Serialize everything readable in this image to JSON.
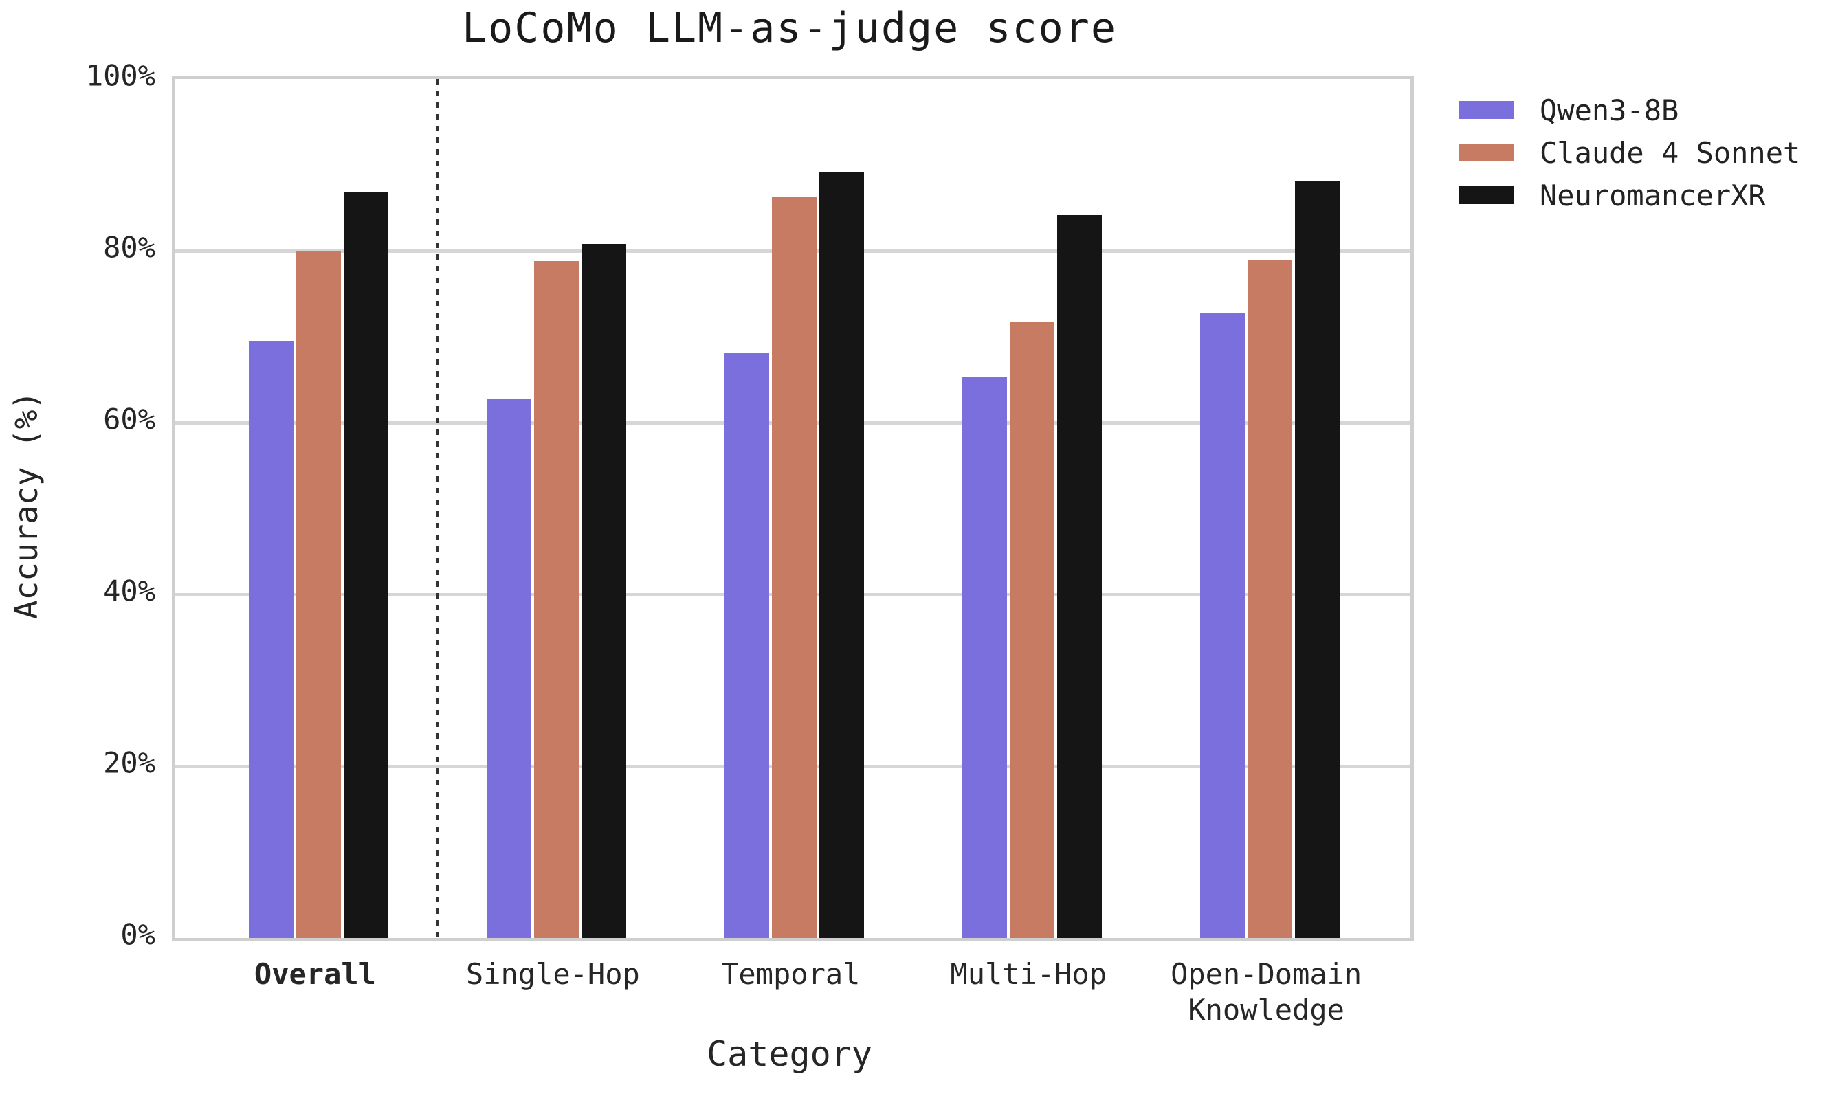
{
  "chart": {
    "title": "LoCoMo LLM-as-judge score",
    "xlabel": "Category",
    "ylabel": "Accuracy (%)"
  },
  "chart_data": {
    "type": "bar",
    "title": "LoCoMo LLM-as-judge score",
    "xlabel": "Category",
    "ylabel": "Accuracy (%)",
    "categories": [
      "Overall",
      "Single-Hop",
      "Temporal",
      "Multi-Hop",
      "Open-Domain\nKnowledge"
    ],
    "emphasized_category": "Overall",
    "separator_after_category": "Overall",
    "series": [
      {
        "name": "Qwen3-8B",
        "color": "#7a6fdc",
        "values": [
          69.5,
          62.8,
          68.2,
          65.4,
          72.8
        ]
      },
      {
        "name": "Claude 4 Sonnet",
        "color": "#c67b62",
        "values": [
          80.0,
          78.8,
          86.3,
          71.8,
          79.0
        ]
      },
      {
        "name": "NeuromancerXR",
        "color": "#151515",
        "values": [
          86.8,
          80.8,
          89.2,
          84.2,
          88.2
        ]
      }
    ],
    "ylim": [
      0,
      100
    ],
    "y_ticks": [
      {
        "value": 0,
        "label": "0%"
      },
      {
        "value": 20,
        "label": "20%"
      },
      {
        "value": 40,
        "label": "40%"
      },
      {
        "value": 60,
        "label": "60%"
      },
      {
        "value": 80,
        "label": "80%"
      },
      {
        "value": 100,
        "label": "100%"
      }
    ],
    "grid": "horizontal",
    "legend_position": "upper-right-outside"
  }
}
